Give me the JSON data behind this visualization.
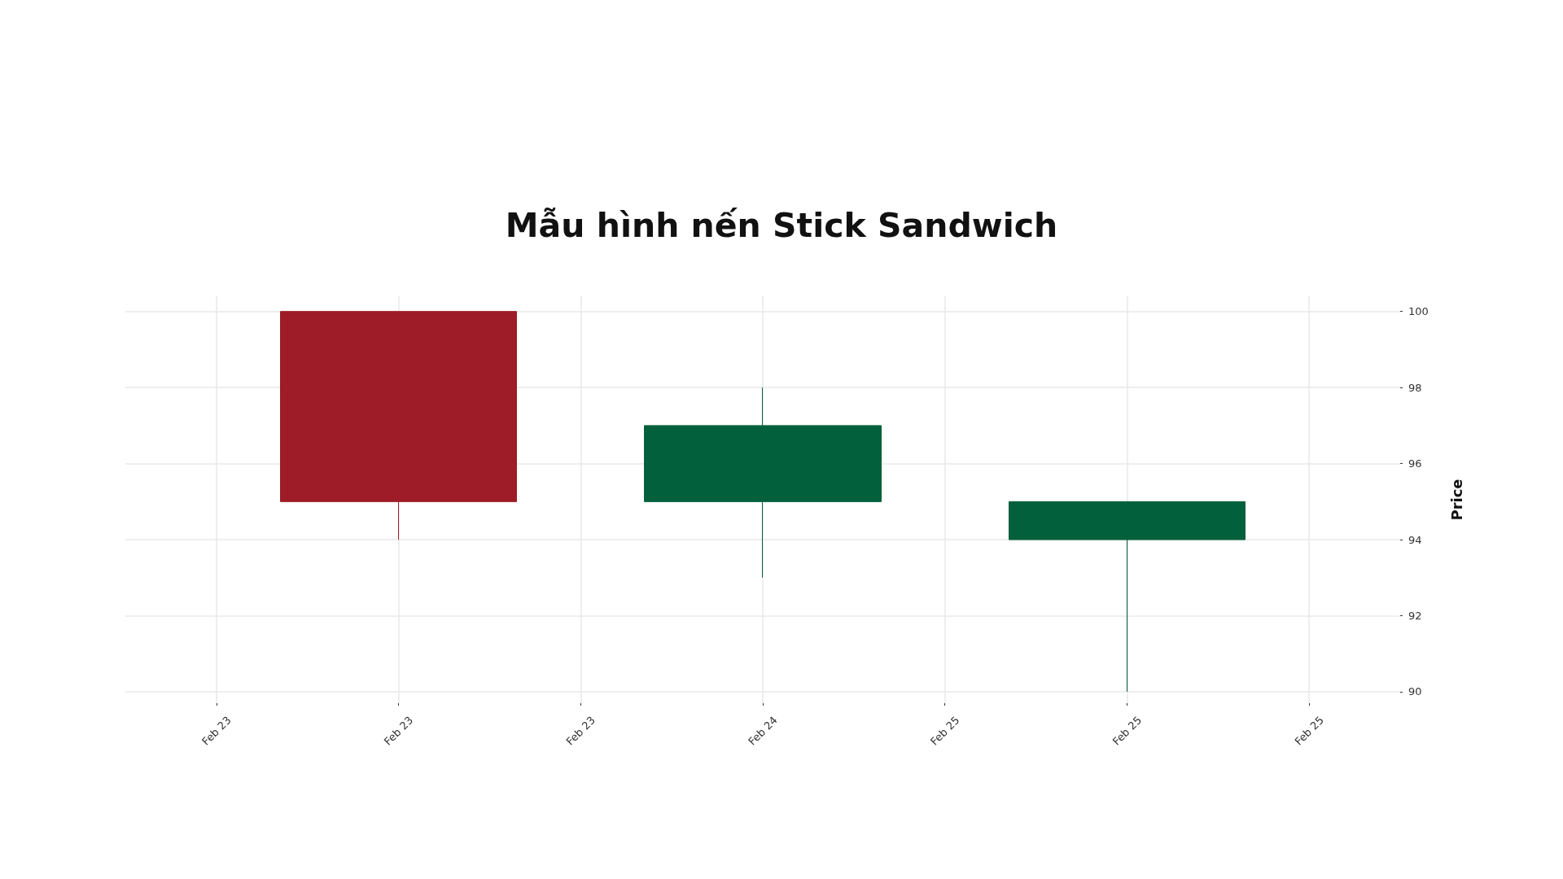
{
  "chart_data": {
    "type": "candlestick",
    "title": "Mẫu hình nến Stick Sandwich",
    "ylabel": "Price",
    "categories": [
      "Feb 23",
      "Feb 23",
      "Feb 23",
      "Feb 24",
      "Feb 25",
      "Feb 25",
      "Feb 25"
    ],
    "ohlc": [
      null,
      [
        100,
        100,
        94,
        95
      ],
      null,
      [
        95,
        98,
        93,
        97
      ],
      null,
      [
        94,
        95,
        90,
        95
      ],
      null
    ],
    "colors": [
      null,
      "#9e1c27",
      null,
      "#03603c",
      null,
      "#03603c",
      null
    ],
    "ylim": [
      89.7,
      100.4
    ],
    "yticks": [
      90,
      92,
      94,
      96,
      98,
      100
    ],
    "grid": true
  }
}
